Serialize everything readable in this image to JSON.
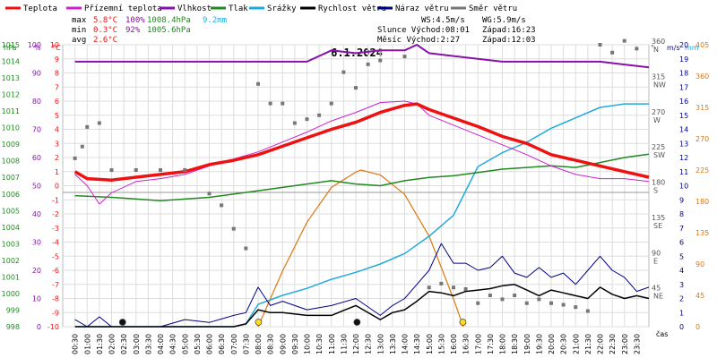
{
  "legend": [
    {
      "label": "Teplota",
      "color": "#ee1111"
    },
    {
      "label": "Přízemní teplota",
      "color": "#cc22cc"
    },
    {
      "label": "Vlhkost",
      "color": "#8811aa"
    },
    {
      "label": "Tlak",
      "color": "#228822"
    },
    {
      "label": "Srážky",
      "color": "#22aadd"
    },
    {
      "label": "Rychlost větru",
      "color": "#000000"
    },
    {
      "label": "Náraz větru",
      "color": "#000088"
    },
    {
      "label": "Směr větru",
      "color": "#777777"
    }
  ],
  "stats": {
    "max_label": "max",
    "min_label": "min",
    "avg_label": "avg",
    "max_temp": "5.8°C",
    "max_hum": "100%",
    "max_press": "1008.4hPa",
    "max_rain": "9.2mm",
    "min_temp": "0.3°C",
    "min_hum": "92%",
    "min_press": "1005.6hPa",
    "avg_temp": "2.6°C"
  },
  "info": {
    "ws": "WS:4.5m/s",
    "wg": "WG:5.9m/s",
    "sun": "Slunce Východ:08:01",
    "sun_set": "Západ:16:23",
    "moon": "Měsíc  Východ:2:27",
    "moon_set": "Západ:12:03"
  },
  "title": "6.1.2024",
  "axis_units": {
    "hpa": "hPa",
    "pct": "%",
    "degc": "°C",
    "deg": "°",
    "ms": "m/s",
    "mm": "mm"
  },
  "x_axis_label": "čas",
  "colors": {
    "temp": "#ee1111",
    "ground": "#cc22cc",
    "hum": "#8811aa",
    "press": "#228822",
    "rain": "#22aadd",
    "wind": "#000000",
    "gust": "#000088",
    "dir": "#777777",
    "sun": "#dd7711",
    "grid": "#dddddd"
  },
  "chart_data": {
    "type": "line",
    "title": "6.1.2024",
    "x_ticks": [
      "00:30",
      "01:00",
      "01:30",
      "02:00",
      "02:30",
      "03:00",
      "03:30",
      "04:00",
      "04:30",
      "05:00",
      "05:30",
      "06:00",
      "06:30",
      "07:00",
      "07:30",
      "08:00",
      "08:30",
      "09:00",
      "09:30",
      "10:00",
      "10:30",
      "11:00",
      "11:30",
      "12:00",
      "12:30",
      "13:00",
      "13:30",
      "14:00",
      "14:30",
      "15:00",
      "15:30",
      "16:00",
      "16:30",
      "17:00",
      "17:30",
      "18:00",
      "18:30",
      "19:00",
      "19:30",
      "20:00",
      "20:30",
      "21:00",
      "21:30",
      "22:00",
      "22:30",
      "23:00",
      "23:30"
    ],
    "axes": {
      "pressure_hpa": {
        "range": [
          998,
          1015
        ],
        "ticks": [
          998,
          999,
          1000,
          1001,
          1002,
          1003,
          1004,
          1005,
          1006,
          1007,
          1008,
          1009,
          1010,
          1011,
          1012,
          1013,
          1014,
          1015
        ]
      },
      "humidity_pct": {
        "range": [
          0,
          100
        ],
        "ticks": [
          0,
          10,
          20,
          30,
          40,
          50,
          60,
          70,
          80,
          90,
          100
        ]
      },
      "temperature_c": {
        "range": [
          -10,
          10
        ],
        "ticks": [
          -10,
          -9,
          -8,
          -7,
          -6,
          -5,
          -4,
          -3,
          -2,
          -1,
          0,
          1,
          2,
          3,
          4,
          5,
          6,
          7,
          8,
          9,
          10
        ]
      },
      "wind_dir_deg": {
        "range": [
          0,
          360
        ],
        "ticks": [
          45,
          90,
          135,
          180,
          225,
          270,
          315,
          360
        ],
        "labels": [
          "NE",
          "E",
          "SE",
          "S",
          "SW",
          "W",
          "NW",
          "N"
        ]
      },
      "wind_ms": {
        "range": [
          0,
          20
        ],
        "ticks": [
          0,
          1,
          2,
          3,
          4,
          5,
          6,
          7,
          8,
          9,
          10,
          11,
          12,
          13,
          14,
          15,
          16,
          17,
          18,
          19,
          20
        ]
      },
      "rain_mm": {
        "range": [
          0,
          405
        ],
        "ticks": [
          0,
          45,
          90,
          135,
          180,
          225,
          270,
          315,
          360,
          405
        ]
      }
    },
    "series": [
      {
        "name": "Teplota",
        "axis": "temperature_c",
        "x": [
          0.5,
          1,
          2,
          3,
          4,
          5,
          6,
          7,
          8,
          9,
          10,
          11,
          12,
          13,
          14,
          14.5,
          15,
          16,
          17,
          18,
          19,
          20,
          21,
          22,
          23,
          24
        ],
        "values": [
          1.0,
          0.5,
          0.4,
          0.6,
          0.8,
          1.0,
          1.5,
          1.8,
          2.2,
          2.8,
          3.4,
          4.0,
          4.5,
          5.2,
          5.7,
          5.8,
          5.4,
          4.8,
          4.2,
          3.5,
          3.0,
          2.2,
          1.8,
          1.4,
          1.0,
          0.6
        ]
      },
      {
        "name": "Přízemní teplota",
        "axis": "temperature_c",
        "x": [
          0.5,
          1,
          1.5,
          2,
          3,
          4,
          5,
          6,
          7,
          8,
          9,
          10,
          11,
          12,
          13,
          14,
          14.5,
          15,
          16,
          17,
          18,
          19,
          20,
          21,
          22,
          23,
          24
        ],
        "values": [
          0.8,
          0.0,
          -1.3,
          -0.5,
          0.3,
          0.5,
          0.8,
          1.4,
          1.9,
          2.4,
          3.1,
          3.8,
          4.6,
          5.2,
          5.9,
          6.0,
          5.8,
          5.0,
          4.3,
          3.6,
          2.9,
          2.2,
          1.4,
          0.8,
          0.5,
          0.5,
          0.3
        ]
      },
      {
        "name": "Vlhkost",
        "axis": "humidity_pct",
        "x": [
          0.5,
          2,
          4,
          6,
          8,
          10,
          11,
          12,
          13,
          14,
          14.5,
          15,
          16,
          18,
          20,
          22,
          23,
          24
        ],
        "values": [
          94,
          94,
          94,
          94,
          94,
          94,
          98,
          97,
          98,
          98,
          100,
          97,
          96,
          94,
          94,
          94,
          93,
          92
        ]
      },
      {
        "name": "Tlak",
        "axis": "pressure_hpa",
        "x": [
          0.5,
          2,
          4,
          6,
          8,
          9,
          10,
          11,
          11.5,
          12,
          13,
          14,
          15,
          16,
          17,
          18,
          19,
          20,
          21,
          22,
          23,
          24
        ],
        "values": [
          1005.9,
          1005.8,
          1005.6,
          1005.8,
          1006.2,
          1006.4,
          1006.6,
          1006.8,
          1006.7,
          1006.6,
          1006.5,
          1006.8,
          1007.0,
          1007.1,
          1007.3,
          1007.5,
          1007.6,
          1007.7,
          1007.6,
          1007.9,
          1008.2,
          1008.4
        ]
      },
      {
        "name": "Srážky",
        "axis": "rain_mm",
        "x": [
          0.5,
          5,
          6,
          7,
          7.5,
          8,
          9,
          10,
          11,
          12,
          13,
          14,
          15,
          16,
          16.5,
          17,
          18,
          19,
          20,
          21,
          22,
          23,
          24
        ],
        "values": [
          0,
          0,
          0,
          0,
          4,
          32,
          45,
          55,
          68,
          78,
          90,
          105,
          130,
          160,
          195,
          230,
          250,
          265,
          285,
          300,
          315,
          320,
          320
        ]
      },
      {
        "name": "Rychlost větru",
        "axis": "wind_ms",
        "x": [
          0.5,
          1,
          2,
          3,
          4,
          5,
          6,
          7,
          7.5,
          8,
          8.5,
          9,
          10,
          11,
          12,
          13,
          13.5,
          14,
          14.5,
          15,
          15.5,
          16,
          16.5,
          17,
          17.5,
          18,
          18.5,
          19,
          19.5,
          20,
          20.5,
          21,
          21.5,
          22,
          22.5,
          23,
          23.5,
          24
        ],
        "values": [
          0,
          0,
          0,
          0,
          0,
          0,
          0,
          0,
          0.2,
          1.2,
          1.0,
          1.0,
          0.8,
          0.8,
          1.5,
          0.5,
          1.0,
          1.2,
          1.8,
          2.5,
          2.4,
          2.2,
          2.5,
          2.6,
          2.7,
          2.9,
          3.0,
          2.6,
          2.2,
          2.6,
          2.4,
          2.2,
          2.0,
          2.8,
          2.3,
          2.0,
          2.2,
          2.0
        ]
      },
      {
        "name": "Náraz větru",
        "axis": "wind_ms",
        "x": [
          0.5,
          1,
          1.5,
          2,
          3,
          4,
          5,
          6,
          7,
          7.5,
          8,
          8.5,
          9,
          10,
          11,
          12,
          13,
          13.5,
          14,
          14.5,
          15,
          15.5,
          16,
          16.5,
          17,
          17.5,
          18,
          18.5,
          19,
          19.5,
          20,
          20.5,
          21,
          21.5,
          22,
          22.5,
          23,
          23.5,
          24
        ],
        "values": [
          0.5,
          0,
          0.7,
          0,
          0,
          0,
          0.5,
          0.3,
          0.8,
          1.0,
          2.8,
          1.5,
          1.8,
          1.2,
          1.5,
          2.0,
          0.8,
          1.5,
          2.0,
          3.0,
          4.0,
          5.9,
          4.5,
          4.5,
          4.0,
          4.2,
          5.0,
          3.8,
          3.5,
          4.2,
          3.5,
          3.8,
          3.0,
          4.0,
          5.0,
          4.0,
          3.5,
          2.5,
          2.8
        ]
      },
      {
        "name": "Směr větru",
        "axis": "wind_dir_deg",
        "x": [
          0.5,
          0.8,
          1,
          1.5,
          2,
          3,
          4,
          5,
          6,
          6.5,
          7,
          7.5,
          8,
          8.5,
          9,
          9.5,
          10,
          10.5,
          11,
          11.5,
          12,
          12.5,
          13,
          14,
          15,
          15.5,
          16,
          16.5,
          17,
          17.5,
          18,
          18.5,
          19,
          19.5,
          20,
          20.5,
          21,
          21.5,
          22,
          22.5,
          23,
          23.5
        ],
        "values": [
          215,
          230,
          255,
          260,
          200,
          200,
          200,
          200,
          170,
          155,
          125,
          100,
          310,
          285,
          285,
          260,
          265,
          270,
          285,
          325,
          305,
          335,
          340,
          345,
          50,
          55,
          50,
          48,
          30,
          40,
          35,
          40,
          30,
          35,
          30,
          28,
          25,
          20,
          360,
          350,
          365,
          355
        ]
      },
      {
        "name": "Slunce",
        "axis": "rain_mm",
        "x": [
          8.0,
          9,
          10,
          11,
          12,
          12.2,
          13,
          14,
          15,
          16,
          16.4
        ],
        "values": [
          0,
          80,
          150,
          200,
          222,
          225,
          218,
          190,
          130,
          40,
          0
        ]
      }
    ],
    "markers": {
      "sunrise": "08:01",
      "sunset": "16:23",
      "moonrise": "2:27",
      "moonset": "12:03"
    }
  }
}
